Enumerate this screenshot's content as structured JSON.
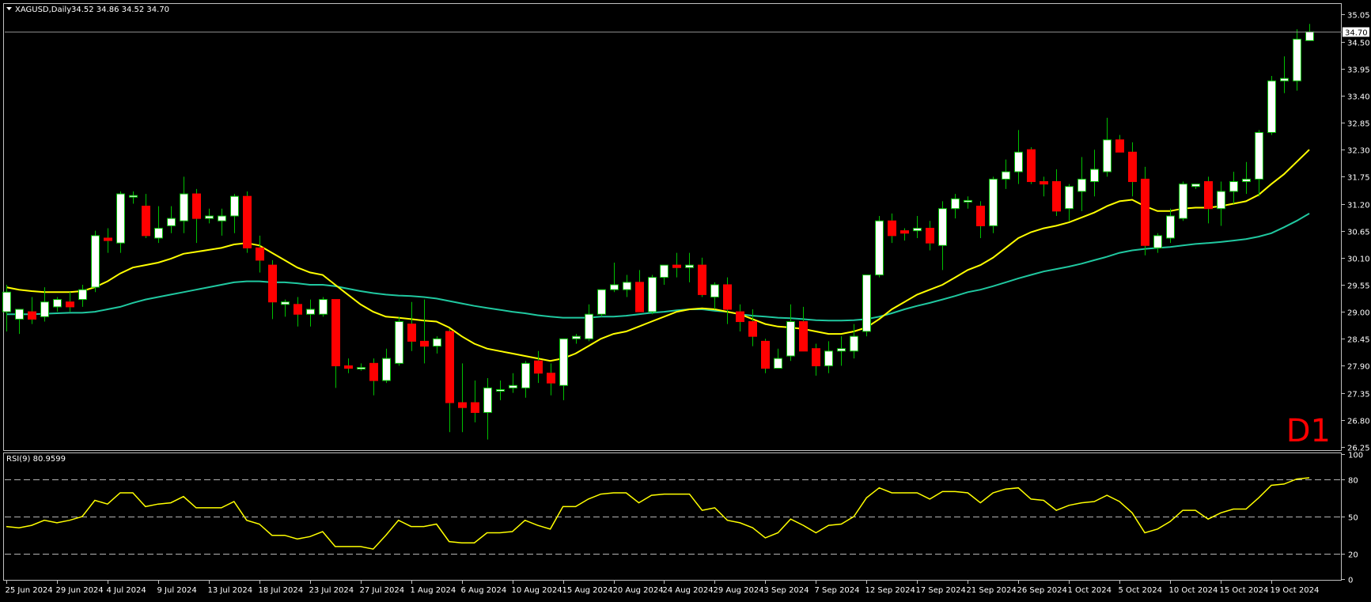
{
  "header": {
    "symbol_label": "XAGUSD,Daily",
    "ohlc_label": "34.52 34.86 34.52 34.70",
    "timeframe_badge": "D1",
    "current_price_label": "34.70"
  },
  "rsi_panel": {
    "label": "RSI(9) 80.9599"
  },
  "colors": {
    "background": "#000000",
    "frame": "#c0c0c0",
    "up_candle": "#ffffff",
    "down_candle": "#ff0000",
    "wick": "#00c000",
    "ma_fast": "#ffff00",
    "ma_slow": "#20c8a0",
    "rsi_line": "#ffff00",
    "badge": "#ff0000",
    "axis_text": "#ffffff"
  },
  "chart_data": [
    {
      "type": "candlestick",
      "symbol": "XAGUSD",
      "timeframe": "Daily",
      "y_ticks": [
        26.25,
        26.8,
        27.35,
        27.9,
        28.45,
        29.0,
        29.55,
        30.1,
        30.65,
        31.2,
        31.75,
        32.3,
        32.85,
        33.4,
        33.95,
        34.5,
        35.05
      ],
      "ylim": [
        26.2,
        35.25
      ],
      "x_tick_labels": [
        "25 Jun 2024",
        "29 Jun 2024",
        "4 Jul 2024",
        "9 Jul 2024",
        "13 Jul 2024",
        "18 Jul 2024",
        "23 Jul 2024",
        "27 Jul 2024",
        "1 Aug 2024",
        "6 Aug 2024",
        "10 Aug 2024",
        "15 Aug 2024",
        "20 Aug 2024",
        "24 Aug 2024",
        "29 Aug 2024",
        "3 Sep 2024",
        "7 Sep 2024",
        "12 Sep 2024",
        "17 Sep 2024",
        "21 Sep 2024",
        "26 Sep 2024",
        "1 Oct 2024",
        "5 Oct 2024",
        "10 Oct 2024",
        "15 Oct 2024",
        "19 Oct 2024"
      ],
      "x_tick_bar_index": [
        0,
        4,
        8,
        12,
        16,
        20,
        24,
        28,
        32,
        36,
        40,
        44,
        48,
        52,
        56,
        60,
        64,
        68,
        72,
        76,
        80,
        84,
        88,
        92,
        96,
        100
      ],
      "ohlc": [
        [
          29.0,
          29.55,
          28.6,
          29.4
        ],
        [
          28.85,
          29.0,
          28.55,
          29.05
        ],
        [
          29.0,
          29.3,
          28.75,
          28.85
        ],
        [
          28.9,
          29.5,
          28.8,
          29.2
        ],
        [
          29.1,
          29.3,
          29.0,
          29.25
        ],
        [
          29.2,
          29.4,
          29.0,
          29.1
        ],
        [
          29.25,
          29.55,
          29.1,
          29.45
        ],
        [
          29.5,
          30.65,
          29.4,
          30.55
        ],
        [
          30.5,
          30.7,
          30.2,
          30.45
        ],
        [
          30.4,
          31.45,
          30.2,
          31.4
        ],
        [
          31.35,
          31.45,
          31.2,
          31.35
        ],
        [
          31.15,
          31.4,
          30.5,
          30.55
        ],
        [
          30.5,
          31.15,
          30.4,
          30.7
        ],
        [
          30.75,
          31.15,
          30.6,
          30.9
        ],
        [
          30.85,
          31.75,
          30.6,
          31.4
        ],
        [
          31.4,
          31.5,
          30.4,
          30.9
        ],
        [
          30.9,
          31.1,
          30.8,
          30.95
        ],
        [
          30.85,
          31.1,
          30.55,
          30.95
        ],
        [
          30.95,
          31.4,
          30.6,
          31.35
        ],
        [
          31.35,
          31.45,
          30.2,
          30.3
        ],
        [
          30.3,
          30.55,
          29.8,
          30.05
        ],
        [
          29.95,
          30.05,
          28.85,
          29.2
        ],
        [
          29.15,
          29.25,
          28.9,
          29.2
        ],
        [
          29.15,
          29.3,
          28.7,
          28.95
        ],
        [
          28.95,
          29.25,
          28.7,
          29.05
        ],
        [
          28.95,
          29.3,
          28.9,
          29.25
        ],
        [
          29.25,
          29.25,
          27.45,
          27.9
        ],
        [
          27.9,
          28.05,
          27.75,
          27.85
        ],
        [
          27.85,
          27.95,
          27.8,
          27.85
        ],
        [
          27.95,
          28.05,
          27.3,
          27.6
        ],
        [
          27.6,
          28.25,
          27.55,
          28.05
        ],
        [
          27.95,
          28.9,
          27.9,
          28.8
        ],
        [
          28.75,
          29.2,
          28.2,
          28.4
        ],
        [
          28.4,
          29.25,
          27.95,
          28.3
        ],
        [
          28.3,
          28.5,
          28.15,
          28.45
        ],
        [
          28.6,
          28.65,
          26.55,
          27.15
        ],
        [
          27.15,
          27.95,
          26.55,
          27.05
        ],
        [
          27.15,
          27.6,
          26.75,
          26.95
        ],
        [
          26.95,
          27.65,
          26.4,
          27.45
        ],
        [
          27.4,
          27.6,
          27.2,
          27.4
        ],
        [
          27.45,
          27.75,
          27.35,
          27.5
        ],
        [
          27.45,
          28.0,
          27.25,
          27.95
        ],
        [
          28.0,
          28.2,
          27.55,
          27.75
        ],
        [
          27.75,
          27.95,
          27.3,
          27.55
        ],
        [
          27.5,
          28.45,
          27.2,
          28.45
        ],
        [
          28.45,
          28.55,
          28.35,
          28.5
        ],
        [
          28.45,
          29.15,
          28.4,
          28.95
        ],
        [
          28.95,
          29.45,
          28.9,
          29.45
        ],
        [
          29.45,
          30.0,
          29.4,
          29.55
        ],
        [
          29.45,
          29.75,
          29.3,
          29.6
        ],
        [
          29.6,
          29.85,
          29.0,
          29.0
        ],
        [
          29.0,
          29.75,
          28.95,
          29.7
        ],
        [
          29.7,
          29.95,
          29.55,
          29.95
        ],
        [
          29.95,
          30.2,
          29.7,
          29.9
        ],
        [
          29.9,
          30.2,
          29.6,
          29.95
        ],
        [
          29.95,
          30.1,
          29.3,
          29.35
        ],
        [
          29.3,
          29.6,
          29.05,
          29.55
        ],
        [
          29.55,
          29.7,
          28.75,
          29.05
        ],
        [
          29.0,
          29.15,
          28.6,
          28.8
        ],
        [
          28.8,
          29.05,
          28.3,
          28.5
        ],
        [
          28.4,
          28.45,
          27.75,
          27.85
        ],
        [
          27.85,
          28.25,
          27.85,
          28.05
        ],
        [
          28.1,
          29.15,
          28.0,
          28.8
        ],
        [
          28.8,
          29.1,
          28.2,
          28.2
        ],
        [
          28.25,
          28.35,
          27.7,
          27.9
        ],
        [
          27.9,
          28.4,
          27.75,
          28.2
        ],
        [
          28.2,
          28.5,
          27.9,
          28.25
        ],
        [
          28.2,
          28.75,
          28.05,
          28.5
        ],
        [
          28.6,
          29.75,
          28.5,
          29.75
        ],
        [
          29.75,
          30.95,
          29.7,
          30.85
        ],
        [
          30.85,
          31.0,
          30.4,
          30.55
        ],
        [
          30.65,
          30.7,
          30.45,
          30.6
        ],
        [
          30.65,
          30.95,
          30.5,
          30.7
        ],
        [
          30.7,
          30.85,
          30.25,
          30.4
        ],
        [
          30.35,
          31.25,
          29.85,
          31.1
        ],
        [
          31.1,
          31.4,
          30.9,
          31.3
        ],
        [
          31.25,
          31.35,
          31.1,
          31.25
        ],
        [
          31.15,
          31.25,
          30.5,
          30.75
        ],
        [
          30.75,
          31.75,
          30.6,
          31.7
        ],
        [
          31.7,
          32.1,
          31.5,
          31.85
        ],
        [
          31.85,
          32.7,
          31.6,
          32.25
        ],
        [
          32.3,
          32.35,
          31.6,
          31.65
        ],
        [
          31.65,
          31.75,
          31.35,
          31.6
        ],
        [
          31.65,
          31.9,
          30.95,
          31.05
        ],
        [
          31.1,
          31.6,
          30.85,
          31.55
        ],
        [
          31.45,
          32.15,
          31.05,
          31.7
        ],
        [
          31.65,
          32.3,
          31.35,
          31.9
        ],
        [
          31.85,
          32.95,
          31.75,
          32.5
        ],
        [
          32.5,
          32.6,
          32.25,
          32.25
        ],
        [
          32.25,
          32.45,
          31.35,
          31.65
        ],
        [
          31.7,
          31.95,
          30.15,
          30.35
        ],
        [
          30.3,
          30.6,
          30.2,
          30.55
        ],
        [
          30.5,
          31.1,
          30.4,
          30.95
        ],
        [
          30.9,
          31.65,
          30.85,
          31.6
        ],
        [
          31.55,
          31.6,
          31.5,
          31.6
        ],
        [
          31.65,
          31.75,
          30.8,
          31.1
        ],
        [
          31.1,
          31.65,
          30.75,
          31.45
        ],
        [
          31.45,
          31.85,
          31.2,
          31.65
        ],
        [
          31.65,
          32.05,
          31.4,
          31.7
        ],
        [
          31.7,
          32.7,
          31.35,
          32.65
        ],
        [
          32.65,
          33.8,
          32.6,
          33.7
        ],
        [
          33.7,
          34.2,
          33.45,
          33.75
        ],
        [
          33.7,
          34.75,
          33.5,
          34.55
        ],
        [
          34.52,
          34.86,
          34.52,
          34.7
        ]
      ],
      "ma_fast": [
        29.5,
        29.45,
        29.42,
        29.4,
        29.4,
        29.4,
        29.42,
        29.5,
        29.62,
        29.78,
        29.9,
        29.95,
        30.0,
        30.08,
        30.18,
        30.22,
        30.26,
        30.3,
        30.37,
        30.4,
        30.35,
        30.2,
        30.05,
        29.9,
        29.8,
        29.75,
        29.55,
        29.35,
        29.15,
        29.0,
        28.9,
        28.88,
        28.85,
        28.82,
        28.8,
        28.68,
        28.5,
        28.35,
        28.25,
        28.2,
        28.15,
        28.1,
        28.05,
        28.0,
        28.05,
        28.15,
        28.3,
        28.45,
        28.55,
        28.6,
        28.7,
        28.8,
        28.9,
        29.0,
        29.05,
        29.07,
        29.05,
        29.0,
        28.95,
        28.85,
        28.75,
        28.7,
        28.68,
        28.65,
        28.6,
        28.55,
        28.55,
        28.6,
        28.68,
        28.85,
        29.05,
        29.2,
        29.35,
        29.45,
        29.55,
        29.7,
        29.85,
        29.95,
        30.1,
        30.3,
        30.5,
        30.62,
        30.7,
        30.75,
        30.82,
        30.92,
        31.02,
        31.15,
        31.25,
        31.28,
        31.15,
        31.05,
        31.05,
        31.1,
        31.12,
        31.12,
        31.15,
        31.2,
        31.25,
        31.38,
        31.6,
        31.8,
        32.05,
        32.3
      ],
      "ma_slow": [
        28.95,
        28.95,
        28.95,
        28.96,
        28.97,
        28.98,
        28.98,
        29.0,
        29.05,
        29.1,
        29.18,
        29.25,
        29.3,
        29.35,
        29.4,
        29.45,
        29.5,
        29.55,
        29.6,
        29.62,
        29.62,
        29.6,
        29.6,
        29.58,
        29.55,
        29.55,
        29.52,
        29.47,
        29.42,
        29.38,
        29.35,
        29.33,
        29.32,
        29.3,
        29.27,
        29.22,
        29.17,
        29.12,
        29.08,
        29.04,
        29.0,
        28.97,
        28.93,
        28.9,
        28.88,
        28.88,
        28.88,
        28.9,
        28.9,
        28.92,
        28.95,
        28.98,
        29.0,
        29.03,
        29.05,
        29.05,
        29.02,
        29.0,
        28.95,
        28.92,
        28.9,
        28.88,
        28.87,
        28.85,
        28.83,
        28.82,
        28.82,
        28.83,
        28.85,
        28.9,
        28.97,
        29.05,
        29.12,
        29.18,
        29.25,
        29.32,
        29.4,
        29.45,
        29.52,
        29.6,
        29.68,
        29.75,
        29.82,
        29.87,
        29.92,
        29.98,
        30.05,
        30.12,
        30.2,
        30.25,
        30.28,
        30.3,
        30.32,
        30.35,
        30.38,
        30.4,
        30.42,
        30.45,
        30.48,
        30.53,
        30.6,
        30.72,
        30.85,
        31.0
      ]
    },
    {
      "type": "line",
      "name": "RSI(9)",
      "y_ticks": [
        0,
        20,
        50,
        80,
        100
      ],
      "levels": [
        20,
        50,
        80
      ],
      "ylim": [
        0,
        100
      ],
      "values": [
        42,
        41,
        43,
        47,
        45,
        47,
        50,
        63,
        60,
        69,
        69,
        58,
        60,
        61,
        66,
        57,
        57,
        57,
        62,
        47,
        44,
        35,
        35,
        32,
        34,
        38,
        26,
        26,
        26,
        24,
        35,
        47,
        42,
        42,
        44,
        30,
        29,
        29,
        37,
        37,
        38,
        47,
        43,
        40,
        58,
        58,
        64,
        68,
        69,
        69,
        61,
        67,
        68,
        68,
        68,
        55,
        57,
        47,
        45,
        41,
        33,
        37,
        48,
        43,
        37,
        43,
        44,
        50,
        65,
        73,
        69,
        69,
        69,
        64,
        70,
        70,
        69,
        61,
        69,
        72,
        73,
        64,
        63,
        55,
        59,
        61,
        62,
        67,
        62,
        53,
        37,
        40,
        46,
        55,
        55,
        48,
        53,
        56,
        56,
        65,
        75,
        76,
        80,
        81
      ]
    }
  ]
}
